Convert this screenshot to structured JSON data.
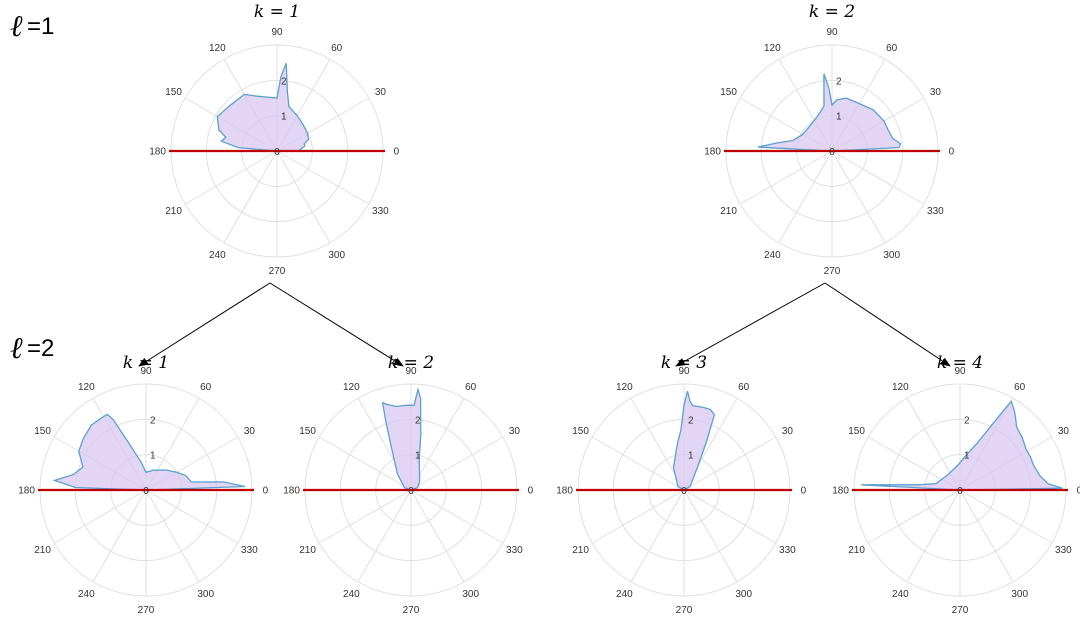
{
  "rows": [
    {
      "symbol": "ℓ",
      "text": "=1"
    },
    {
      "symbol": "ℓ",
      "text": "=2"
    }
  ],
  "colors": {
    "baseline": "#c00000",
    "curve": "#5aa0d0",
    "fill": "#d9c8f2",
    "grid": "#e0e0e0",
    "arrow": "#000000"
  },
  "chart_data": [
    {
      "type": "polar-area",
      "title": "k = 1",
      "angle_ticks": [
        "0",
        "30",
        "60",
        "90",
        "120",
        "150",
        "180",
        "210",
        "240",
        "270",
        "300",
        "330"
      ],
      "radial_ticks": [
        "0",
        "1",
        "2"
      ],
      "rlim": [
        0,
        3
      ],
      "series": [
        {
          "values": [
            [
              0,
              0.6
            ],
            [
              3,
              0.65
            ],
            [
              6,
              0.7
            ],
            [
              10,
              0.8
            ],
            [
              15,
              0.8
            ],
            [
              20,
              0.95
            ],
            [
              30,
              1.0
            ],
            [
              45,
              1.05
            ],
            [
              60,
              1.15
            ],
            [
              75,
              1.3
            ],
            [
              80,
              1.7
            ],
            [
              84,
              2.5
            ],
            [
              87,
              2.1
            ],
            [
              90,
              1.5
            ],
            [
              100,
              1.55
            ],
            [
              110,
              1.65
            ],
            [
              120,
              1.85
            ],
            [
              135,
              1.85
            ],
            [
              150,
              1.95
            ],
            [
              160,
              1.75
            ],
            [
              165,
              1.5
            ],
            [
              170,
              1.6
            ],
            [
              175,
              1.1
            ],
            [
              180,
              0.0
            ]
          ]
        }
      ]
    },
    {
      "type": "polar-area",
      "title": "k = 2",
      "angle_ticks": [
        "0",
        "30",
        "60",
        "90",
        "120",
        "150",
        "180",
        "210",
        "240",
        "270",
        "300",
        "330"
      ],
      "radial_ticks": [
        "0",
        "1",
        "2"
      ],
      "rlim": [
        0,
        3
      ],
      "series": [
        {
          "values": [
            [
              0,
              0.0
            ],
            [
              3,
              1.9
            ],
            [
              6,
              1.95
            ],
            [
              12,
              1.75
            ],
            [
              20,
              1.7
            ],
            [
              30,
              1.7
            ],
            [
              45,
              1.65
            ],
            [
              60,
              1.55
            ],
            [
              75,
              1.55
            ],
            [
              85,
              1.45
            ],
            [
              90,
              1.3
            ],
            [
              93,
              1.8
            ],
            [
              96,
              2.2
            ],
            [
              100,
              1.3
            ],
            [
              110,
              1.1
            ],
            [
              130,
              0.95
            ],
            [
              150,
              0.95
            ],
            [
              165,
              1.15
            ],
            [
              172,
              1.6
            ],
            [
              177,
              2.1
            ],
            [
              180,
              0.0
            ]
          ]
        }
      ]
    },
    {
      "type": "polar-area",
      "title": "k = 1",
      "angle_ticks": [
        "0",
        "30",
        "60",
        "90",
        "120",
        "150",
        "180",
        "210",
        "240",
        "270",
        "300",
        "330"
      ],
      "radial_ticks": [
        "0",
        "1",
        "2"
      ],
      "rlim": [
        0,
        3
      ],
      "series": [
        {
          "values": [
            [
              0,
              0.0
            ],
            [
              2,
              2.8
            ],
            [
              6,
              2.2
            ],
            [
              10,
              1.3
            ],
            [
              20,
              1.2
            ],
            [
              30,
              1.0
            ],
            [
              45,
              0.8
            ],
            [
              70,
              0.6
            ],
            [
              90,
              0.5
            ],
            [
              100,
              0.8
            ],
            [
              110,
              1.4
            ],
            [
              115,
              2.2
            ],
            [
              117,
              2.4
            ],
            [
              120,
              2.4
            ],
            [
              130,
              2.4
            ],
            [
              140,
              2.3
            ],
            [
              150,
              2.2
            ],
            [
              160,
              1.9
            ],
            [
              168,
              2.1
            ],
            [
              174,
              2.6
            ],
            [
              178,
              2.0
            ],
            [
              180,
              0.0
            ]
          ]
        }
      ]
    },
    {
      "type": "polar-area",
      "title": "k = 2",
      "angle_ticks": [
        "0",
        "30",
        "60",
        "90",
        "120",
        "150",
        "180",
        "210",
        "240",
        "270",
        "300",
        "330"
      ],
      "radial_ticks": [
        "0",
        "1",
        "2"
      ],
      "rlim": [
        0,
        3
      ],
      "series": [
        {
          "values": [
            [
              0,
              0.0
            ],
            [
              20,
              0.2
            ],
            [
              45,
              0.35
            ],
            [
              75,
              0.9
            ],
            [
              80,
              1.6
            ],
            [
              84,
              2.6
            ],
            [
              86,
              2.85
            ],
            [
              88,
              2.4
            ],
            [
              91,
              2.4
            ],
            [
              95,
              2.4
            ],
            [
              100,
              2.4
            ],
            [
              105,
              2.5
            ],
            [
              108,
              2.6
            ],
            [
              110,
              2.1
            ],
            [
              115,
              1.3
            ],
            [
              130,
              0.6
            ],
            [
              160,
              0.2
            ],
            [
              180,
              0.0
            ]
          ]
        }
      ]
    },
    {
      "type": "polar-area",
      "title": "k = 3",
      "angle_ticks": [
        "0",
        "30",
        "60",
        "90",
        "120",
        "150",
        "180",
        "210",
        "240",
        "270",
        "300",
        "330"
      ],
      "radial_ticks": [
        "0",
        "1",
        "2"
      ],
      "rlim": [
        0,
        3
      ],
      "series": [
        {
          "values": [
            [
              0,
              0.0
            ],
            [
              30,
              0.2
            ],
            [
              60,
              0.8
            ],
            [
              65,
              1.5
            ],
            [
              68,
              2.3
            ],
            [
              72,
              2.4
            ],
            [
              76,
              2.4
            ],
            [
              80,
              2.4
            ],
            [
              84,
              2.4
            ],
            [
              86,
              2.5
            ],
            [
              88,
              2.8
            ],
            [
              90,
              2.4
            ],
            [
              93,
              1.7
            ],
            [
              97,
              1.4
            ],
            [
              100,
              1.2
            ],
            [
              115,
              0.7
            ],
            [
              150,
              0.2
            ],
            [
              180,
              0.0
            ]
          ]
        }
      ]
    },
    {
      "type": "polar-area",
      "title": "k = 4",
      "angle_ticks": [
        "0",
        "30",
        "60",
        "90",
        "120",
        "150",
        "180",
        "210",
        "240",
        "270",
        "300",
        "330"
      ],
      "radial_ticks": [
        "0",
        "1",
        "2"
      ],
      "rlim": [
        0,
        3
      ],
      "series": [
        {
          "values": [
            [
              0,
              0.0
            ],
            [
              1,
              2.9
            ],
            [
              4,
              2.5
            ],
            [
              10,
              2.3
            ],
            [
              18,
              2.2
            ],
            [
              25,
              2.2
            ],
            [
              32,
              2.2
            ],
            [
              40,
              2.3
            ],
            [
              48,
              2.4
            ],
            [
              55,
              2.7
            ],
            [
              60,
              2.9
            ],
            [
              63,
              2.2
            ],
            [
              70,
              1.4
            ],
            [
              80,
              1.0
            ],
            [
              95,
              0.7
            ],
            [
              110,
              0.6
            ],
            [
              130,
              0.55
            ],
            [
              150,
              0.6
            ],
            [
              165,
              0.7
            ],
            [
              173,
              1.2
            ],
            [
              177,
              2.8
            ],
            [
              180,
              0.0
            ]
          ]
        }
      ]
    }
  ]
}
